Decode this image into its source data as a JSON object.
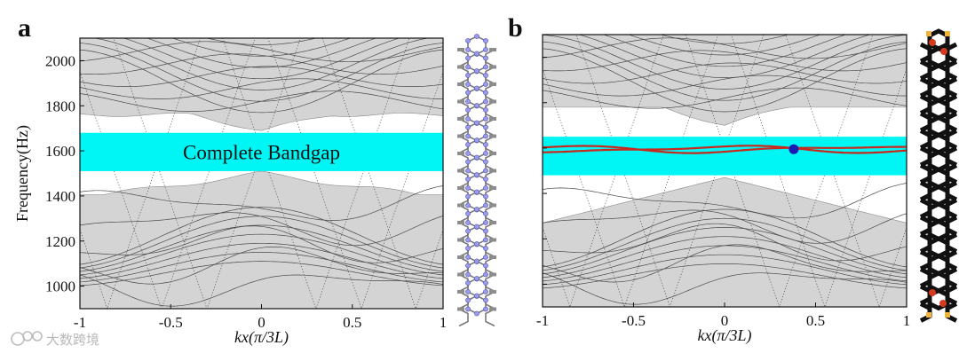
{
  "chart_data": [
    {
      "panel": "a",
      "type": "line",
      "xlabel": "kx(π/3L)",
      "ylabel": "Frequency(Hz)",
      "xlim": [
        -1,
        1
      ],
      "ylim": [
        900,
        2100
      ],
      "xticks": [
        -1,
        -0.5,
        0,
        0.5,
        1
      ],
      "xtick_labels": [
        "-1",
        "-0.5",
        "0",
        "0.5",
        "1"
      ],
      "yticks": [
        1000,
        1200,
        1400,
        1600,
        1800,
        2000
      ],
      "ytick_labels": [
        "1000",
        "1200",
        "1400",
        "1600",
        "1800",
        "2000"
      ],
      "bulk_band_regions": [
        [
          900,
          1500
        ],
        [
          1690,
          2100
        ]
      ],
      "bandgap": [
        1510,
        1680
      ],
      "bandgap_color": "#00f5f5",
      "bulk_band_color": "#d4d4d4",
      "annotation": "Complete Bandgap",
      "grid": false
    },
    {
      "panel": "b",
      "type": "line",
      "xlabel": "kx(π/3L)",
      "xlim": [
        -1,
        1
      ],
      "ylim": [
        900,
        2100
      ],
      "xticks": [
        -1,
        -0.5,
        0,
        0.5,
        1
      ],
      "xtick_labels": [
        "-1",
        "-0.5",
        "0",
        "0.5",
        "1"
      ],
      "bulk_band_regions": [
        [
          900,
          1470
        ],
        [
          1700,
          2100
        ]
      ],
      "bandgap": [
        1480,
        1650
      ],
      "bandgap_color": "#00f5f5",
      "bulk_band_color": "#d4d4d4",
      "edge_state_color": "#c8291c",
      "edge_state_center": 1595,
      "marker": {
        "x": 0.38,
        "y": 1595,
        "color": "#1a1ab5"
      },
      "grid": false
    }
  ],
  "watermark": "大数跨境",
  "colors": {
    "accent": "#00f5f5",
    "edge_state": "#c8291c",
    "marker": "#1a1ab5",
    "bulk": "#d4d4d4"
  }
}
